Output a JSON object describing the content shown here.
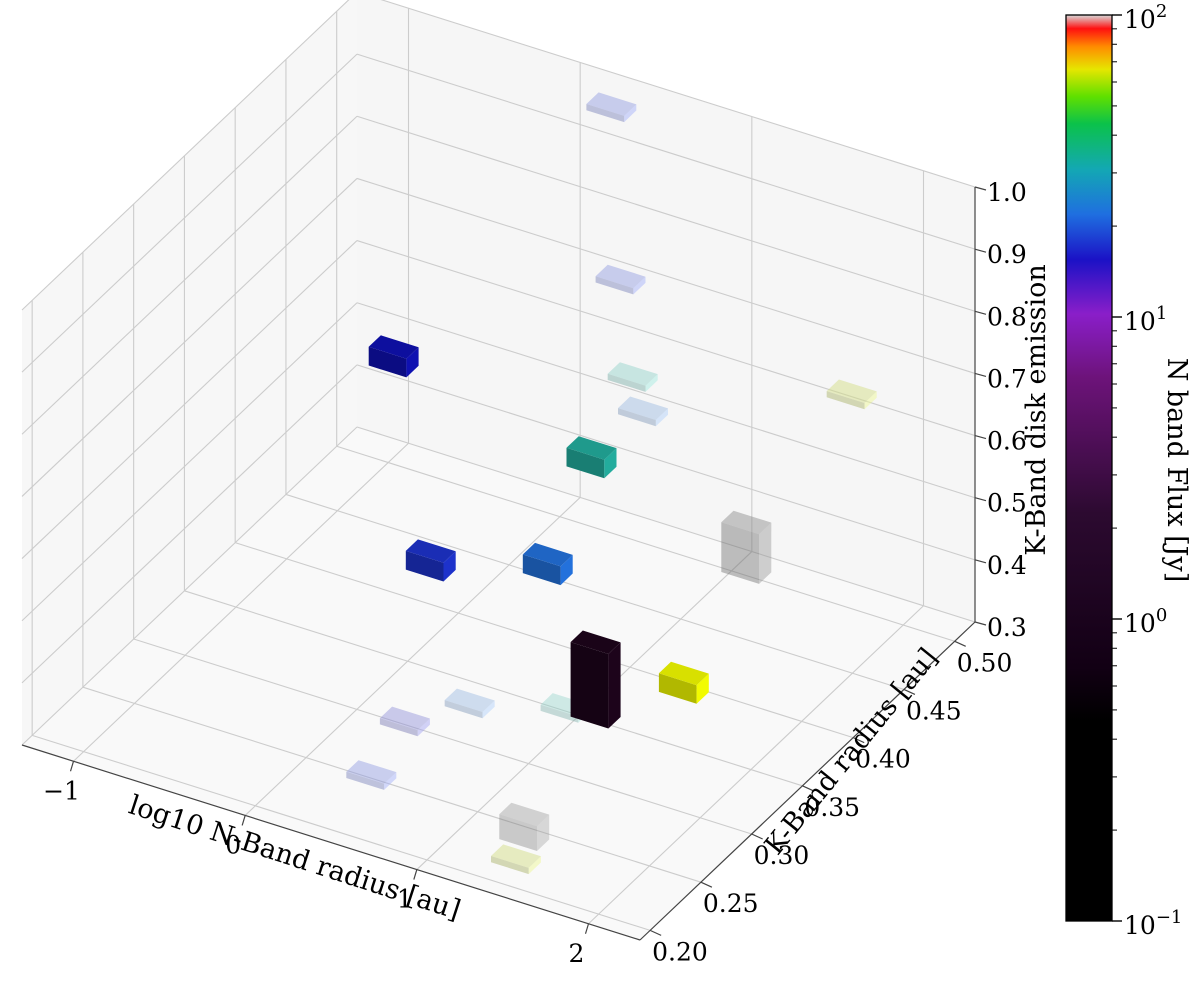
{
  "chart_data": {
    "type": "bar3d",
    "title": "",
    "xlabel": "log10 N-Band radius [au]",
    "ylabel": "K-Band radius [au]",
    "zlabel": "K-Band disk emission",
    "xlim": [
      -1.3,
      2.3
    ],
    "ylim": [
      0.19,
      0.52
    ],
    "zlim": [
      0.3,
      1.0
    ],
    "x_ticks": [
      -1,
      0,
      1,
      2
    ],
    "x_tick_labels": [
      "−1",
      "0",
      "1",
      "2"
    ],
    "y_ticks": [
      0.2,
      0.25,
      0.3,
      0.35,
      0.4,
      0.45,
      0.5
    ],
    "y_tick_labels": [
      "0.20",
      "0.25",
      "0.30",
      "0.35",
      "0.40",
      "0.45",
      "0.50"
    ],
    "z_ticks": [
      0.3,
      0.4,
      0.5,
      0.6,
      0.7,
      0.8,
      0.9,
      1.0
    ],
    "z_tick_labels": [
      "0.3",
      "0.4",
      "0.5",
      "0.6",
      "0.7",
      "0.8",
      "0.9",
      "1.0"
    ],
    "grid": true,
    "colorbar": {
      "label": "N band Flux [Jy]",
      "scale": "log",
      "range": [
        0.1,
        100
      ],
      "tick_labels": [
        "10",
        "10",
        "10",
        "10"
      ],
      "tick_exponents": [
        "−1",
        "0",
        "1",
        "2"
      ]
    },
    "bars": [
      {
        "x": 1.45,
        "y": 0.29,
        "z": 0.43,
        "dz": 0.12,
        "color": "#1a0418",
        "alpha": 1.0
      },
      {
        "x": -0.22,
        "y": 0.41,
        "z": 0.335,
        "dz": 0.03,
        "color": "#1a2db5",
        "alpha": 1.0
      },
      {
        "x": 0.58,
        "y": 0.39,
        "z": 0.43,
        "dz": 0.03,
        "color": "#1f65c4",
        "alpha": 1.0
      },
      {
        "x": -0.85,
        "y": 0.48,
        "z": 0.5,
        "dz": 0.03,
        "color": "#0d0f9e",
        "alpha": 1.0
      },
      {
        "x": 0.48,
        "y": 0.45,
        "z": 0.5,
        "dz": 0.03,
        "color": "#1f9a8c",
        "alpha": 1.0
      },
      {
        "x": 1.55,
        "y": 0.36,
        "z": 0.37,
        "dz": 0.03,
        "color": "#d8e000",
        "alpha": 1.0
      },
      {
        "x": 1.33,
        "y": 0.24,
        "z": 0.3,
        "dz": 0.04,
        "color": "#888888",
        "alpha": 0.35
      },
      {
        "x": 1.4,
        "y": 0.22,
        "z": 0.3,
        "dz": 0.01,
        "color": "#d4dd88",
        "alpha": 0.5
      },
      {
        "x": 0.92,
        "y": 0.35,
        "z": 0.3,
        "dz": 0.01,
        "color": "#8fd1c8",
        "alpha": 0.4
      },
      {
        "x": 0.48,
        "y": 0.33,
        "z": 0.3,
        "dz": 0.01,
        "color": "#9ab8e0",
        "alpha": 0.45
      },
      {
        "x": 0.28,
        "y": 0.3,
        "z": 0.3,
        "dz": 0.01,
        "color": "#8f8fd8",
        "alpha": 0.45
      },
      {
        "x": 0.38,
        "y": 0.25,
        "z": 0.3,
        "dz": 0.01,
        "color": "#8f9ae0",
        "alpha": 0.45
      },
      {
        "x": 0.78,
        "y": 0.45,
        "z": 0.61,
        "dz": 0.01,
        "color": "#9ab8e0",
        "alpha": 0.45
      },
      {
        "x": 0.72,
        "y": 0.45,
        "z": 0.66,
        "dz": 0.01,
        "color": "#8fd1c8",
        "alpha": 0.45
      },
      {
        "x": 0.59,
        "y": 0.46,
        "z": 0.79,
        "dz": 0.01,
        "color": "#8f9ae0",
        "alpha": 0.45
      },
      {
        "x": 0.3,
        "y": 0.5,
        "z": 0.98,
        "dz": 0.01,
        "color": "#8f9ae0",
        "alpha": 0.45
      },
      {
        "x": 1.5,
        "y": 0.43,
        "z": 0.45,
        "dz": 0.08,
        "color": "#888888",
        "alpha": 0.45
      },
      {
        "x": 1.7,
        "y": 0.5,
        "z": 0.64,
        "dz": 0.01,
        "color": "#d4dd88",
        "alpha": 0.5
      }
    ]
  }
}
